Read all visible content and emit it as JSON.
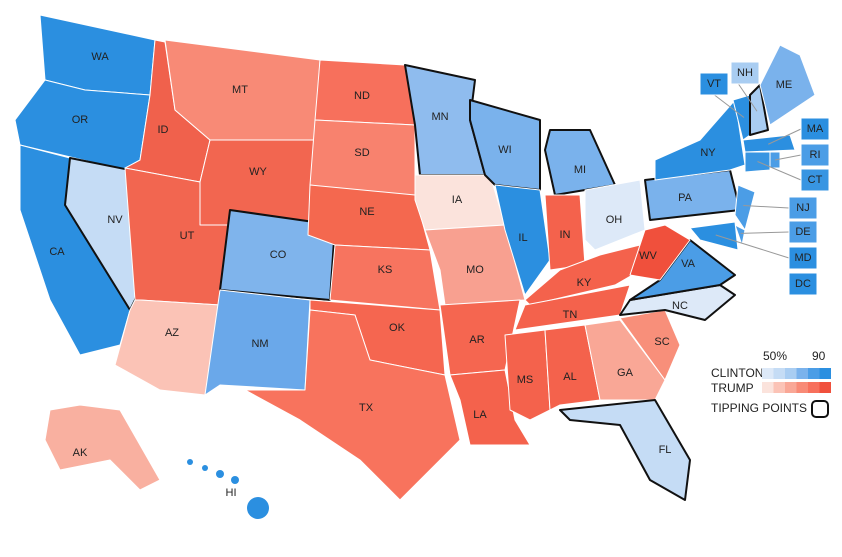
{
  "map": {
    "states": [
      {
        "abbr": "WA",
        "color": "#2b8fe0"
      },
      {
        "abbr": "OR",
        "color": "#2b8fe0"
      },
      {
        "abbr": "CA",
        "color": "#2b8fe0"
      },
      {
        "abbr": "NV",
        "color": "#c5dcf5",
        "tipping": true
      },
      {
        "abbr": "ID",
        "color": "#f0614c"
      },
      {
        "abbr": "MT",
        "color": "#f88a76"
      },
      {
        "abbr": "WY",
        "color": "#f26650"
      },
      {
        "abbr": "UT",
        "color": "#f26650"
      },
      {
        "abbr": "AZ",
        "color": "#fbc3b6"
      },
      {
        "abbr": "CO",
        "color": "#7fb4ec",
        "tipping": true
      },
      {
        "abbr": "NM",
        "color": "#6aa8ea"
      },
      {
        "abbr": "ND",
        "color": "#f7705c"
      },
      {
        "abbr": "SD",
        "color": "#f8826e"
      },
      {
        "abbr": "NE",
        "color": "#f4684f"
      },
      {
        "abbr": "KS",
        "color": "#f7745f"
      },
      {
        "abbr": "OK",
        "color": "#f56650"
      },
      {
        "abbr": "TX",
        "color": "#f8735d"
      },
      {
        "abbr": "MN",
        "color": "#8fbcee",
        "tipping": true
      },
      {
        "abbr": "IA",
        "color": "#fbe3dc"
      },
      {
        "abbr": "MO",
        "color": "#f8a090"
      },
      {
        "abbr": "AR",
        "color": "#f56650"
      },
      {
        "abbr": "LA",
        "color": "#f4624c"
      },
      {
        "abbr": "WI",
        "color": "#7ab2ec",
        "tipping": true
      },
      {
        "abbr": "IL",
        "color": "#2b8fe0"
      },
      {
        "abbr": "MI",
        "color": "#7ab2ec",
        "tipping": true
      },
      {
        "abbr": "IN",
        "color": "#f4624c"
      },
      {
        "abbr": "OH",
        "color": "#dde9f8"
      },
      {
        "abbr": "KY",
        "color": "#f4624c"
      },
      {
        "abbr": "TN",
        "color": "#f4624c"
      },
      {
        "abbr": "MS",
        "color": "#f4624c"
      },
      {
        "abbr": "AL",
        "color": "#f4624c"
      },
      {
        "abbr": "GA",
        "color": "#f9a796"
      },
      {
        "abbr": "FL",
        "color": "#c5dcf5",
        "tipping": true
      },
      {
        "abbr": "SC",
        "color": "#f88f7a"
      },
      {
        "abbr": "NC",
        "color": "#dde9f8",
        "tipping": true
      },
      {
        "abbr": "VA",
        "color": "#4b9de6",
        "tipping": true
      },
      {
        "abbr": "WV",
        "color": "#f0503c"
      },
      {
        "abbr": "PA",
        "color": "#7ab2ec",
        "tipping": true
      },
      {
        "abbr": "NY",
        "color": "#2b8fe0"
      },
      {
        "abbr": "NJ",
        "color": "#4b9de6"
      },
      {
        "abbr": "DE",
        "color": "#4b9de6"
      },
      {
        "abbr": "MD",
        "color": "#2b8fe0"
      },
      {
        "abbr": "VT",
        "color": "#2b8fe0"
      },
      {
        "abbr": "NH",
        "color": "#a9cdf2",
        "tipping": true
      },
      {
        "abbr": "ME",
        "color": "#7ab2ec"
      },
      {
        "abbr": "MA",
        "color": "#2b8fe0"
      },
      {
        "abbr": "CT",
        "color": "#3895e2"
      },
      {
        "abbr": "RI",
        "color": "#4b9de6"
      },
      {
        "abbr": "AK",
        "color": "#f9b0a0"
      },
      {
        "abbr": "HI",
        "color": "#2b8fe0"
      },
      {
        "abbr": "DC",
        "color": "#2b8fe0"
      }
    ],
    "legend": {
      "low": "50%",
      "high": "90",
      "clinton": "CLINTON",
      "trump": "TRUMP",
      "tipping": "TIPPING POINTS",
      "clinton_colors": [
        "#dde9f8",
        "#c5dcf5",
        "#a9cdf2",
        "#7ab2ec",
        "#4b9de6",
        "#2b8fe0"
      ],
      "trump_colors": [
        "#fbe3dc",
        "#fbc3b6",
        "#f9a796",
        "#f88a76",
        "#f7705c",
        "#f0503c"
      ]
    }
  }
}
